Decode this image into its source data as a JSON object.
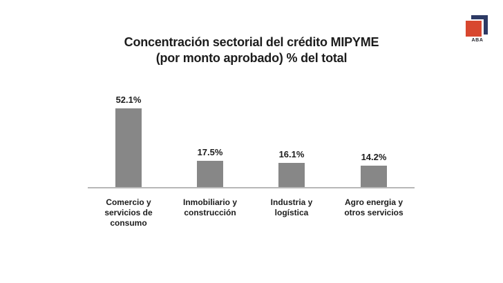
{
  "logo": {
    "text": "ABA",
    "red_color": "#d8472f",
    "navy_color": "#2d3a64"
  },
  "header": {
    "title_line1": "Concentración sectorial del crédito MIPYME",
    "title_line2": "(por monto aprobado) % del total"
  },
  "chart_data": {
    "type": "bar",
    "title": "Concentración sectorial del crédito MIPYME (por monto aprobado) % del total",
    "categories": [
      "Comercio y servicios de consumo",
      "Inmobiliario y construcción",
      "Industria y logística",
      "Agro energia y otros servicios"
    ],
    "values": [
      52.1,
      17.5,
      16.1,
      14.2
    ],
    "value_labels": [
      "52.1%",
      "17.5%",
      "16.1%",
      "14.2%"
    ],
    "xlabel": "",
    "ylabel": "",
    "ylim": [
      0,
      60
    ],
    "grid": false,
    "legend": false,
    "bar_color": "#878787",
    "axis_line_color": "#b7b7b7",
    "text_color": "#1c1c1c"
  }
}
